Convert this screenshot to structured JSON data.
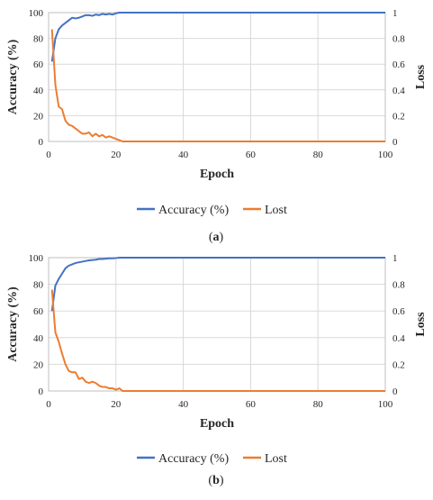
{
  "chart_data": [
    {
      "type": "line",
      "x": [
        1,
        2,
        3,
        4,
        5,
        6,
        7,
        8,
        9,
        10,
        11,
        12,
        13,
        14,
        15,
        16,
        17,
        18,
        19,
        20,
        21,
        22,
        23,
        24,
        25,
        26,
        27,
        28,
        29,
        30,
        31,
        32,
        33,
        34,
        35,
        36,
        37,
        38,
        39,
        40,
        41,
        42,
        43,
        44,
        45,
        46,
        47,
        48,
        49,
        50,
        51,
        52,
        53,
        54,
        55,
        56,
        57,
        58,
        59,
        60,
        61,
        62,
        63,
        64,
        65,
        66,
        67,
        68,
        69,
        70,
        71,
        72,
        73,
        74,
        75,
        76,
        77,
        78,
        79,
        80,
        81,
        82,
        83,
        84,
        85,
        86,
        87,
        88,
        89,
        90,
        91,
        92,
        93,
        94,
        95,
        96,
        97,
        98,
        99,
        100
      ],
      "series": [
        {
          "name": "Accuracy (%)",
          "axis": "left",
          "color": "#4472C4",
          "values": [
            62,
            80,
            87,
            90,
            92,
            94,
            96,
            95.5,
            96,
            97,
            98,
            98,
            97.5,
            98.5,
            98,
            99,
            98.5,
            99,
            98.5,
            99.5,
            100,
            100,
            100,
            100,
            100,
            100,
            100,
            100,
            100,
            100,
            100,
            100,
            100,
            100,
            100,
            100,
            100,
            100,
            100,
            100,
            100,
            100,
            100,
            100,
            100,
            100,
            100,
            100,
            100,
            100,
            100,
            100,
            100,
            100,
            100,
            100,
            100,
            100,
            100,
            100,
            100,
            100,
            100,
            100,
            100,
            100,
            100,
            100,
            100,
            100,
            100,
            100,
            100,
            100,
            100,
            100,
            100,
            100,
            100,
            100,
            100,
            100,
            100,
            100,
            100,
            100,
            100,
            100,
            100,
            100,
            100,
            100,
            100,
            100,
            100,
            100,
            100,
            100,
            100,
            100
          ]
        },
        {
          "name": "Lost",
          "axis": "right",
          "color": "#ED7D31",
          "values": [
            0.87,
            0.44,
            0.27,
            0.25,
            0.16,
            0.13,
            0.12,
            0.1,
            0.08,
            0.06,
            0.06,
            0.07,
            0.04,
            0.06,
            0.04,
            0.05,
            0.03,
            0.04,
            0.03,
            0.02,
            0.01,
            0.0,
            0.0,
            0.0,
            0,
            0,
            0,
            0,
            0,
            0,
            0,
            0,
            0,
            0,
            0,
            0,
            0,
            0,
            0,
            0,
            0,
            0,
            0,
            0,
            0,
            0,
            0,
            0,
            0,
            0,
            0,
            0,
            0,
            0,
            0,
            0,
            0,
            0,
            0,
            0,
            0,
            0,
            0,
            0,
            0,
            0,
            0,
            0,
            0,
            0,
            0,
            0,
            0,
            0,
            0,
            0,
            0,
            0,
            0,
            0,
            0,
            0,
            0,
            0,
            0,
            0,
            0,
            0,
            0,
            0,
            0,
            0,
            0,
            0,
            0,
            0,
            0,
            0,
            0,
            0
          ]
        }
      ],
      "xlabel": "Epoch",
      "ylabel": "Accuracy (%)",
      "y2label": "Loss",
      "xlim": [
        0,
        100
      ],
      "ylim": [
        0,
        100
      ],
      "y2lim": [
        0,
        1
      ],
      "xticks": [
        0,
        20,
        40,
        60,
        80,
        100
      ],
      "yticks": [
        0,
        20,
        40,
        60,
        80,
        100
      ],
      "y2ticks": [
        "0",
        "0.2",
        "0.4",
        "0.6",
        "0.8",
        "1"
      ],
      "grid": true,
      "legend": "bottom",
      "caption": "(a)"
    },
    {
      "type": "line",
      "x": [
        1,
        2,
        3,
        4,
        5,
        6,
        7,
        8,
        9,
        10,
        11,
        12,
        13,
        14,
        15,
        16,
        17,
        18,
        19,
        20,
        21,
        22,
        23,
        24,
        25,
        26,
        27,
        28,
        29,
        30,
        31,
        32,
        33,
        34,
        35,
        36,
        37,
        38,
        39,
        40,
        41,
        42,
        43,
        44,
        45,
        46,
        47,
        48,
        49,
        50,
        51,
        52,
        53,
        54,
        55,
        56,
        57,
        58,
        59,
        60,
        61,
        62,
        63,
        64,
        65,
        66,
        67,
        68,
        69,
        70,
        71,
        72,
        73,
        74,
        75,
        76,
        77,
        78,
        79,
        80,
        81,
        82,
        83,
        84,
        85,
        86,
        87,
        88,
        89,
        90,
        91,
        92,
        93,
        94,
        95,
        96,
        97,
        98,
        99,
        100
      ],
      "series": [
        {
          "name": "Accuracy (%)",
          "axis": "left",
          "color": "#4472C4",
          "values": [
            60,
            79,
            84,
            88,
            92,
            94,
            95,
            96,
            96.5,
            97,
            97.5,
            98,
            98.2,
            98.5,
            99,
            99,
            99.2,
            99.5,
            99.5,
            99.7,
            100,
            100,
            100,
            100,
            100,
            100,
            100,
            100,
            100,
            100,
            100,
            100,
            100,
            100,
            100,
            100,
            100,
            100,
            100,
            100,
            100,
            100,
            100,
            100,
            100,
            100,
            100,
            100,
            100,
            100,
            100,
            100,
            100,
            100,
            100,
            100,
            100,
            100,
            100,
            100,
            100,
            100,
            100,
            100,
            100,
            100,
            100,
            100,
            100,
            100,
            100,
            100,
            100,
            100,
            100,
            100,
            100,
            100,
            100,
            100,
            100,
            100,
            100,
            100,
            100,
            100,
            100,
            100,
            100,
            100,
            100,
            100,
            100,
            100,
            100,
            100,
            100,
            100,
            100,
            100
          ]
        },
        {
          "name": "Lost",
          "axis": "right",
          "color": "#ED7D31",
          "values": [
            0.76,
            0.44,
            0.37,
            0.28,
            0.2,
            0.15,
            0.14,
            0.14,
            0.09,
            0.1,
            0.07,
            0.06,
            0.07,
            0.06,
            0.04,
            0.03,
            0.03,
            0.02,
            0.02,
            0.01,
            0.02,
            0.0,
            0.0,
            0,
            0,
            0,
            0,
            0,
            0,
            0,
            0,
            0,
            0,
            0,
            0,
            0,
            0,
            0,
            0,
            0,
            0,
            0,
            0,
            0,
            0,
            0,
            0,
            0,
            0,
            0,
            0,
            0,
            0,
            0,
            0,
            0,
            0,
            0,
            0,
            0,
            0,
            0,
            0,
            0,
            0,
            0,
            0,
            0,
            0,
            0,
            0,
            0,
            0,
            0,
            0,
            0,
            0,
            0,
            0,
            0,
            0,
            0,
            0,
            0,
            0,
            0,
            0,
            0,
            0,
            0,
            0,
            0,
            0,
            0,
            0,
            0,
            0,
            0,
            0,
            0
          ]
        }
      ],
      "xlabel": "Epoch",
      "ylabel": "Accuracy (%)",
      "y2label": "Loss",
      "xlim": [
        0,
        100
      ],
      "ylim": [
        0,
        100
      ],
      "y2lim": [
        0,
        1
      ],
      "xticks": [
        0,
        20,
        40,
        60,
        80,
        100
      ],
      "yticks": [
        0,
        20,
        40,
        60,
        80,
        100
      ],
      "y2ticks": [
        "0",
        "0.2",
        "0.4",
        "0.6",
        "0.8",
        "1"
      ],
      "grid": true,
      "legend": "bottom",
      "caption": "(b)"
    }
  ]
}
